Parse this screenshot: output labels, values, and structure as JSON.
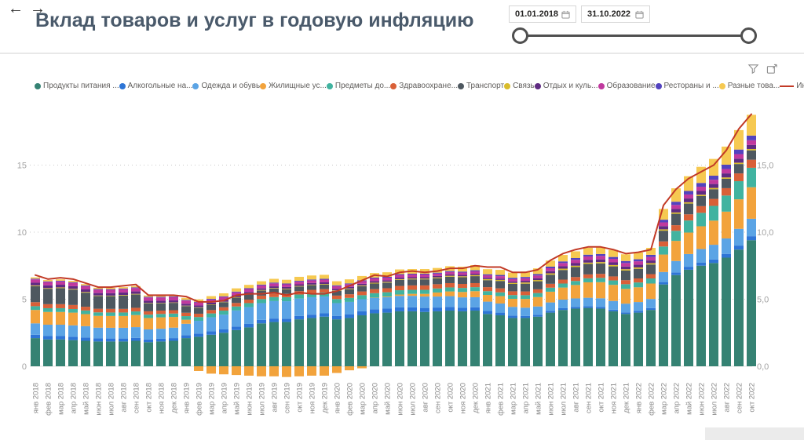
{
  "header": {
    "back_arrow": "←",
    "forward_arrow": "→",
    "title": "Вклад товаров и услуг в годовую инфляцию",
    "date_from": "01.01.2018",
    "date_to": "31.10.2022"
  },
  "panel": {
    "icons": [
      "filter-funnel-icon",
      "focus-mode-icon"
    ]
  },
  "chart_data": {
    "type": "stacked-bar+line",
    "title": "Вклад товаров и услуг в годовую инфляцию",
    "legend_position": "top",
    "grid": "dotted horizontal at 5, 10, 15",
    "y_axis": {
      "tick_values": [
        0,
        5,
        10,
        15
      ],
      "left_ticks": [
        "0",
        "5",
        "10",
        "15"
      ],
      "right_ticks": [
        "0,0",
        "5,0",
        "10,0",
        "15,0"
      ],
      "min": -1.0,
      "max": 19.0
    },
    "categories": [
      "янв 2018",
      "фев 2018",
      "мар 2018",
      "апр 2018",
      "май 2018",
      "июн 2018",
      "июл 2018",
      "авг 2018",
      "сен 2018",
      "окт 2018",
      "ноя 2018",
      "дек 2018",
      "янв 2019",
      "фев 2019",
      "мар 2019",
      "апр 2019",
      "май 2019",
      "июн 2019",
      "июл 2019",
      "авг 2019",
      "сен 2019",
      "окт 2019",
      "ноя 2019",
      "дек 2019",
      "янв 2020",
      "фев 2020",
      "мар 2020",
      "апр 2020",
      "май 2020",
      "июн 2020",
      "июл 2020",
      "авг 2020",
      "сен 2020",
      "окт 2020",
      "ноя 2020",
      "дек 2020",
      "янв 2021",
      "фев 2021",
      "мар 2021",
      "апр 2021",
      "май 2021",
      "июн 2021",
      "июл 2021",
      "авг 2021",
      "сен 2021",
      "окт 2021",
      "ноя 2021",
      "дек 2021",
      "янв 2022",
      "фев 2022",
      "мар 2022",
      "апр 2022",
      "май 2022",
      "июн 2022",
      "июл 2022",
      "авг 2022",
      "сен 2022",
      "окт 2022"
    ],
    "series": [
      {
        "name": "Продукты питания",
        "legend_label": "Продукты питания ...",
        "color": "#358273",
        "values": [
          2.1,
          2.0,
          2.0,
          1.95,
          1.9,
          1.85,
          1.85,
          1.85,
          1.9,
          1.8,
          1.85,
          1.9,
          2.1,
          2.2,
          2.35,
          2.5,
          2.7,
          2.9,
          3.2,
          3.3,
          3.3,
          3.5,
          3.6,
          3.7,
          3.5,
          3.6,
          3.8,
          3.95,
          4.0,
          4.1,
          4.1,
          4.05,
          4.1,
          4.15,
          4.1,
          4.15,
          3.9,
          3.8,
          3.6,
          3.6,
          3.7,
          4.0,
          4.2,
          4.3,
          4.35,
          4.3,
          4.1,
          3.9,
          4.0,
          4.2,
          6.1,
          6.8,
          7.2,
          7.5,
          7.7,
          8.1,
          8.7,
          9.4
        ]
      },
      {
        "name": "Алкогольные напитки",
        "legend_label": "Алкогольные на...",
        "color": "#2e75d6",
        "values": [
          0.25,
          0.25,
          0.25,
          0.25,
          0.24,
          0.23,
          0.22,
          0.22,
          0.22,
          0.2,
          0.2,
          0.2,
          0.22,
          0.24,
          0.25,
          0.25,
          0.26,
          0.26,
          0.26,
          0.26,
          0.25,
          0.25,
          0.25,
          0.25,
          0.26,
          0.28,
          0.3,
          0.3,
          0.3,
          0.3,
          0.3,
          0.3,
          0.28,
          0.28,
          0.26,
          0.25,
          0.22,
          0.2,
          0.18,
          0.15,
          0.14,
          0.13,
          0.13,
          0.12,
          0.12,
          0.12,
          0.12,
          0.12,
          0.13,
          0.14,
          0.18,
          0.2,
          0.22,
          0.24,
          0.26,
          0.28,
          0.3,
          0.3
        ]
      },
      {
        "name": "Одежда и обувь",
        "legend_label": "Одежда и обувь",
        "color": "#5ba4e5",
        "values": [
          0.85,
          0.85,
          0.85,
          0.85,
          0.85,
          0.8,
          0.8,
          0.8,
          0.8,
          0.75,
          0.75,
          0.78,
          0.85,
          0.95,
          1.05,
          1.1,
          1.2,
          1.25,
          1.25,
          1.3,
          1.3,
          1.3,
          1.3,
          1.25,
          0.95,
          0.92,
          0.9,
          0.88,
          0.85,
          0.85,
          0.85,
          0.85,
          0.82,
          0.8,
          0.78,
          0.75,
          0.7,
          0.68,
          0.65,
          0.62,
          0.62,
          0.63,
          0.64,
          0.64,
          0.64,
          0.65,
          0.65,
          0.65,
          0.66,
          0.68,
          0.75,
          0.85,
          0.95,
          1.0,
          1.1,
          1.15,
          1.25,
          1.3
        ]
      },
      {
        "name": "Жилищные услуги",
        "legend_label": "Жилищные ус...",
        "color": "#f2a33c",
        "values": [
          1.0,
          0.95,
          0.95,
          0.95,
          0.9,
          0.88,
          0.88,
          0.88,
          0.9,
          0.85,
          0.85,
          0.8,
          0.3,
          -0.35,
          -0.55,
          -0.6,
          -0.65,
          -0.7,
          -0.75,
          -0.75,
          -0.8,
          -0.75,
          -0.7,
          -0.7,
          -0.5,
          -0.3,
          -0.15,
          0.0,
          0.05,
          0.1,
          0.15,
          0.2,
          0.3,
          0.35,
          0.4,
          0.45,
          0.5,
          0.55,
          0.6,
          0.65,
          0.7,
          0.8,
          0.9,
          1.0,
          1.15,
          1.2,
          1.2,
          1.1,
          1.1,
          1.15,
          1.3,
          1.5,
          1.6,
          1.7,
          1.8,
          2.0,
          2.2,
          2.35
        ]
      },
      {
        "name": "Предметы домашнего обихода",
        "legend_label": "Предметы до...",
        "color": "#41b3a0",
        "values": [
          0.28,
          0.28,
          0.28,
          0.27,
          0.27,
          0.26,
          0.26,
          0.26,
          0.27,
          0.25,
          0.25,
          0.25,
          0.27,
          0.28,
          0.29,
          0.3,
          0.3,
          0.3,
          0.3,
          0.3,
          0.3,
          0.3,
          0.3,
          0.3,
          0.3,
          0.3,
          0.3,
          0.32,
          0.32,
          0.32,
          0.3,
          0.3,
          0.3,
          0.3,
          0.3,
          0.3,
          0.28,
          0.28,
          0.28,
          0.28,
          0.3,
          0.3,
          0.3,
          0.3,
          0.3,
          0.32,
          0.33,
          0.35,
          0.36,
          0.38,
          0.6,
          0.75,
          0.9,
          1.0,
          1.1,
          1.2,
          1.35,
          1.45
        ]
      },
      {
        "name": "Здравоохранение",
        "legend_label": "Здравоохране...",
        "color": "#d96038",
        "values": [
          0.3,
          0.3,
          0.3,
          0.3,
          0.28,
          0.27,
          0.27,
          0.27,
          0.27,
          0.25,
          0.25,
          0.25,
          0.25,
          0.25,
          0.25,
          0.25,
          0.26,
          0.26,
          0.26,
          0.26,
          0.25,
          0.25,
          0.25,
          0.25,
          0.26,
          0.27,
          0.28,
          0.3,
          0.3,
          0.32,
          0.33,
          0.33,
          0.32,
          0.32,
          0.3,
          0.3,
          0.3,
          0.3,
          0.28,
          0.28,
          0.28,
          0.29,
          0.29,
          0.29,
          0.29,
          0.3,
          0.3,
          0.3,
          0.3,
          0.32,
          0.38,
          0.42,
          0.46,
          0.5,
          0.52,
          0.55,
          0.58,
          0.6
        ]
      },
      {
        "name": "Транспорт",
        "legend_label": "Транспорт",
        "color": "#4e5860",
        "values": [
          1.2,
          1.15,
          1.2,
          1.15,
          1.05,
          0.95,
          0.95,
          1.0,
          1.0,
          0.6,
          0.55,
          0.55,
          0.5,
          0.45,
          0.4,
          0.38,
          0.4,
          0.4,
          0.38,
          0.38,
          0.35,
          0.35,
          0.35,
          0.35,
          0.35,
          0.38,
          0.4,
          0.42,
          0.42,
          0.45,
          0.45,
          0.45,
          0.45,
          0.48,
          0.5,
          0.52,
          0.52,
          0.55,
          0.55,
          0.58,
          0.6,
          0.68,
          0.72,
          0.75,
          0.78,
          0.78,
          0.75,
          0.72,
          0.72,
          0.72,
          0.8,
          0.85,
          0.8,
          0.75,
          0.72,
          0.7,
          0.7,
          0.7
        ]
      },
      {
        "name": "Связь",
        "legend_label": "Связь",
        "color": "#d9bc2b",
        "values": [
          0.05,
          0.05,
          0.05,
          0.05,
          0.05,
          0.04,
          0.04,
          0.04,
          0.04,
          0.03,
          0.03,
          0.03,
          0.03,
          0.03,
          0.03,
          0.03,
          0.04,
          0.04,
          0.04,
          0.04,
          0.04,
          0.04,
          0.04,
          0.04,
          0.04,
          0.05,
          0.05,
          0.06,
          0.06,
          0.06,
          0.06,
          0.06,
          0.06,
          0.07,
          0.07,
          0.08,
          0.08,
          0.08,
          0.08,
          0.09,
          0.09,
          0.1,
          0.1,
          0.1,
          0.1,
          0.1,
          0.1,
          0.1,
          0.1,
          0.1,
          0.1,
          0.1,
          0.1,
          0.1,
          0.1,
          0.1,
          0.1,
          0.1
        ]
      },
      {
        "name": "Отдых и культура",
        "legend_label": "Отдых и куль...",
        "color": "#5f2b82",
        "values": [
          0.2,
          0.2,
          0.2,
          0.2,
          0.19,
          0.18,
          0.18,
          0.18,
          0.18,
          0.15,
          0.15,
          0.15,
          0.14,
          0.13,
          0.13,
          0.13,
          0.13,
          0.13,
          0.12,
          0.12,
          0.12,
          0.12,
          0.12,
          0.12,
          0.12,
          0.12,
          0.12,
          0.12,
          0.11,
          0.11,
          0.1,
          0.1,
          0.1,
          0.1,
          0.1,
          0.1,
          0.1,
          0.1,
          0.1,
          0.12,
          0.14,
          0.16,
          0.18,
          0.19,
          0.2,
          0.2,
          0.2,
          0.2,
          0.2,
          0.2,
          0.24,
          0.26,
          0.28,
          0.28,
          0.29,
          0.3,
          0.3,
          0.3
        ]
      },
      {
        "name": "Образование",
        "legend_label": "Образование",
        "color": "#c0399e",
        "values": [
          0.25,
          0.25,
          0.25,
          0.25,
          0.25,
          0.25,
          0.25,
          0.25,
          0.25,
          0.25,
          0.25,
          0.25,
          0.24,
          0.23,
          0.23,
          0.23,
          0.22,
          0.22,
          0.22,
          0.22,
          0.2,
          0.2,
          0.2,
          0.2,
          0.2,
          0.2,
          0.2,
          0.2,
          0.2,
          0.2,
          0.2,
          0.2,
          0.18,
          0.18,
          0.18,
          0.18,
          0.18,
          0.18,
          0.18,
          0.19,
          0.2,
          0.22,
          0.24,
          0.25,
          0.26,
          0.26,
          0.26,
          0.26,
          0.26,
          0.26,
          0.28,
          0.3,
          0.3,
          0.32,
          0.32,
          0.33,
          0.34,
          0.35
        ]
      },
      {
        "name": "Рестораны и гостиницы",
        "legend_label": "Рестораны и ...",
        "color": "#5243bf",
        "values": [
          0.05,
          0.05,
          0.05,
          0.05,
          0.05,
          0.05,
          0.05,
          0.05,
          0.05,
          0.05,
          0.05,
          0.05,
          0.05,
          0.05,
          0.05,
          0.05,
          0.06,
          0.06,
          0.06,
          0.06,
          0.06,
          0.06,
          0.06,
          0.06,
          0.06,
          0.06,
          0.06,
          0.06,
          0.06,
          0.06,
          0.06,
          0.06,
          0.07,
          0.07,
          0.07,
          0.08,
          0.08,
          0.09,
          0.1,
          0.1,
          0.11,
          0.12,
          0.12,
          0.13,
          0.13,
          0.14,
          0.14,
          0.15,
          0.15,
          0.16,
          0.2,
          0.24,
          0.26,
          0.28,
          0.3,
          0.32,
          0.34,
          0.35
        ]
      },
      {
        "name": "Разные товары",
        "legend_label": "Разные това...",
        "color": "#f6c951",
        "values": [
          0.1,
          0.1,
          0.1,
          0.1,
          0.1,
          0.1,
          0.1,
          0.1,
          0.1,
          0.1,
          0.1,
          0.12,
          0.15,
          0.18,
          0.2,
          0.22,
          0.24,
          0.25,
          0.25,
          0.28,
          0.28,
          0.3,
          0.3,
          0.3,
          0.3,
          0.3,
          0.32,
          0.34,
          0.34,
          0.35,
          0.35,
          0.35,
          0.35,
          0.36,
          0.36,
          0.38,
          0.38,
          0.38,
          0.38,
          0.4,
          0.42,
          0.45,
          0.48,
          0.5,
          0.52,
          0.52,
          0.52,
          0.5,
          0.5,
          0.52,
          0.8,
          1.0,
          1.1,
          1.2,
          1.25,
          1.35,
          1.45,
          1.55
        ]
      }
    ],
    "line": {
      "name": "Инфляция",
      "legend_label": "Инфляция",
      "color": "#c23a26",
      "values": [
        6.8,
        6.5,
        6.6,
        6.5,
        6.2,
        5.9,
        5.9,
        6.0,
        6.1,
        5.3,
        5.3,
        5.3,
        5.2,
        4.8,
        4.8,
        4.9,
        5.3,
        5.4,
        5.4,
        5.5,
        5.3,
        5.5,
        5.4,
        5.4,
        5.6,
        6.0,
        6.4,
        6.8,
        6.7,
        7.0,
        7.1,
        7.0,
        7.1,
        7.3,
        7.3,
        7.5,
        7.4,
        7.4,
        7.0,
        7.0,
        7.2,
        7.9,
        8.4,
        8.7,
        8.9,
        8.9,
        8.7,
        8.4,
        8.5,
        8.7,
        12.0,
        13.2,
        14.0,
        14.5,
        15.0,
        16.1,
        17.7,
        18.8
      ]
    }
  }
}
